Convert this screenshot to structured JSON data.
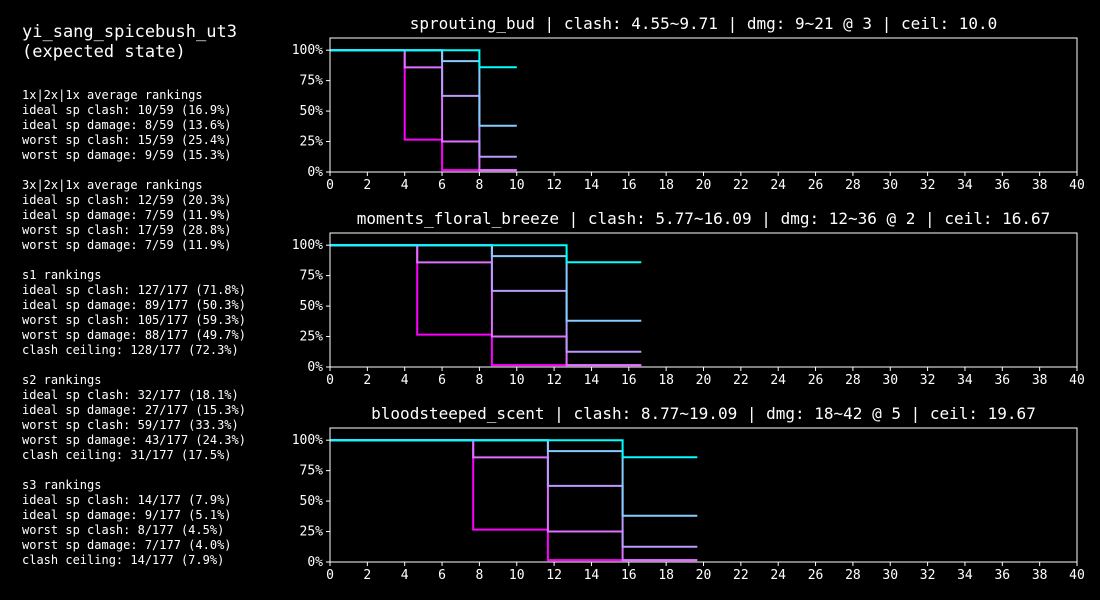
{
  "page": {
    "title_line1": "yi_sang_spicebush_ut3",
    "title_line2": "(expected state)"
  },
  "sections": [
    {
      "header": "1x|2x|1x average rankings",
      "lines": [
        "ideal sp clash: 10/59 (16.9%)",
        "ideal sp damage: 8/59 (13.6%)",
        "worst sp clash: 15/59 (25.4%)",
        "worst sp damage: 9/59 (15.3%)"
      ]
    },
    {
      "header": "3x|2x|1x average rankings",
      "lines": [
        "ideal sp clash: 12/59 (20.3%)",
        "ideal sp damage: 7/59 (11.9%)",
        "worst sp clash: 17/59 (28.8%)",
        "worst sp damage: 7/59 (11.9%)"
      ]
    },
    {
      "header": "s1 rankings",
      "lines": [
        "ideal sp clash: 127/177 (71.8%)",
        "ideal sp damage: 89/177 (50.3%)",
        "worst sp clash: 105/177 (59.3%)",
        "worst sp damage: 88/177 (49.7%)",
        "clash ceiling: 128/177 (72.3%)"
      ]
    },
    {
      "header": "s2 rankings",
      "lines": [
        "ideal sp clash: 32/177 (18.1%)",
        "ideal sp damage: 27/177 (15.3%)",
        "worst sp clash: 59/177 (33.3%)",
        "worst sp damage: 43/177 (24.3%)",
        "clash ceiling: 31/177 (17.5%)"
      ]
    },
    {
      "header": "s3 rankings",
      "lines": [
        "ideal sp clash: 14/177 (7.9%)",
        "ideal sp damage: 9/177 (5.1%)",
        "worst sp clash: 8/177 (4.5%)",
        "worst sp damage: 7/177 (4.0%)",
        "clash ceiling: 14/177 (7.9%)"
      ]
    }
  ],
  "colors": {
    "background": "#000000",
    "axis": "#ffffff",
    "text": "#ffffff",
    "series": [
      "#ff00ff",
      "#e070ff",
      "#bb99ff",
      "#88ccff",
      "#00ffff"
    ]
  },
  "chart_data": [
    {
      "type": "line",
      "title": "sprouting_bud | clash: 4.55~9.71 | dmg: 9~21 @ 3 | ceil: 10.0",
      "xlim": [
        0,
        40
      ],
      "ylim": [
        0,
        1.1
      ],
      "xticks": [
        0,
        2,
        4,
        6,
        8,
        10,
        12,
        14,
        16,
        18,
        20,
        22,
        24,
        26,
        28,
        30,
        32,
        34,
        36,
        38,
        40
      ],
      "xtick_labels": [
        "0",
        "2",
        "4",
        "6",
        "8",
        "10",
        "12",
        "14",
        "16",
        "18",
        "20",
        "22",
        "24",
        "26",
        "28",
        "30",
        "32",
        "34",
        "36",
        "38",
        "40"
      ],
      "yticks": [
        0,
        0.25,
        0.5,
        0.75,
        1.0
      ],
      "ytick_labels": [
        "0%",
        "25%",
        "50%",
        "75%",
        "100%"
      ],
      "grid": false,
      "series": [
        {
          "x": [
            0,
            4,
            4,
            6,
            6,
            8,
            8,
            10
          ],
          "y": [
            1,
            1,
            0.266,
            0.266,
            0.016,
            0.016,
            0.016,
            0.016
          ]
        },
        {
          "x": [
            0,
            4,
            4,
            6,
            6,
            8,
            8,
            10
          ],
          "y": [
            1,
            1,
            0.859,
            0.859,
            0.25,
            0.25,
            0.016,
            0.016
          ]
        },
        {
          "x": [
            0,
            6,
            6,
            8,
            8,
            10
          ],
          "y": [
            1,
            1,
            0.625,
            0.625,
            0.125,
            0.125
          ]
        },
        {
          "x": [
            0,
            6,
            6,
            8,
            8,
            10
          ],
          "y": [
            1,
            1,
            0.91,
            0.91,
            0.38,
            0.38
          ]
        },
        {
          "x": [
            0,
            8,
            8,
            10
          ],
          "y": [
            1,
            1,
            0.86,
            0.86
          ]
        }
      ]
    },
    {
      "type": "line",
      "title": "moments_floral_breeze | clash: 5.77~16.09 | dmg: 12~36 @ 2 | ceil: 16.67",
      "xlim": [
        0,
        40
      ],
      "ylim": [
        0,
        1.1
      ],
      "xticks": [
        0,
        2,
        4,
        6,
        8,
        10,
        12,
        14,
        16,
        18,
        20,
        22,
        24,
        26,
        28,
        30,
        32,
        34,
        36,
        38,
        40
      ],
      "xtick_labels": [
        "0",
        "2",
        "4",
        "6",
        "8",
        "10",
        "12",
        "14",
        "16",
        "18",
        "20",
        "22",
        "24",
        "26",
        "28",
        "30",
        "32",
        "34",
        "36",
        "38",
        "40"
      ],
      "yticks": [
        0,
        0.25,
        0.5,
        0.75,
        1.0
      ],
      "ytick_labels": [
        "0%",
        "25%",
        "50%",
        "75%",
        "100%"
      ],
      "grid": false,
      "series": [
        {
          "x": [
            0,
            4.67,
            4.67,
            8.67,
            8.67,
            12.67,
            12.67,
            16.67
          ],
          "y": [
            1,
            1,
            0.266,
            0.266,
            0.016,
            0.016,
            0.016,
            0.016
          ]
        },
        {
          "x": [
            0,
            4.67,
            4.67,
            8.67,
            8.67,
            12.67,
            12.67,
            16.67
          ],
          "y": [
            1,
            1,
            0.859,
            0.859,
            0.25,
            0.25,
            0.016,
            0.016
          ]
        },
        {
          "x": [
            0,
            8.67,
            8.67,
            12.67,
            12.67,
            16.67
          ],
          "y": [
            1,
            1,
            0.625,
            0.625,
            0.125,
            0.125
          ]
        },
        {
          "x": [
            0,
            8.67,
            8.67,
            12.67,
            12.67,
            16.67
          ],
          "y": [
            1,
            1,
            0.91,
            0.91,
            0.38,
            0.38
          ]
        },
        {
          "x": [
            0,
            12.67,
            12.67,
            16.67
          ],
          "y": [
            1,
            1,
            0.86,
            0.86
          ]
        }
      ]
    },
    {
      "type": "line",
      "title": "bloodsteeped_scent | clash: 8.77~19.09 | dmg: 18~42 @ 5 | ceil: 19.67",
      "xlim": [
        0,
        40
      ],
      "ylim": [
        0,
        1.1
      ],
      "xticks": [
        0,
        2,
        4,
        6,
        8,
        10,
        12,
        14,
        16,
        18,
        20,
        22,
        24,
        26,
        28,
        30,
        32,
        34,
        36,
        38,
        40
      ],
      "xtick_labels": [
        "0",
        "2",
        "4",
        "6",
        "8",
        "10",
        "12",
        "14",
        "16",
        "18",
        "20",
        "22",
        "24",
        "26",
        "28",
        "30",
        "32",
        "34",
        "36",
        "38",
        "40"
      ],
      "yticks": [
        0,
        0.25,
        0.5,
        0.75,
        1.0
      ],
      "ytick_labels": [
        "0%",
        "25%",
        "50%",
        "75%",
        "100%"
      ],
      "grid": false,
      "series": [
        {
          "x": [
            0,
            7.67,
            7.67,
            11.67,
            11.67,
            15.67,
            15.67,
            19.67
          ],
          "y": [
            1,
            1,
            0.266,
            0.266,
            0.016,
            0.016,
            0.016,
            0.016
          ]
        },
        {
          "x": [
            0,
            7.67,
            7.67,
            11.67,
            11.67,
            15.67,
            15.67,
            19.67
          ],
          "y": [
            1,
            1,
            0.859,
            0.859,
            0.25,
            0.25,
            0.016,
            0.016
          ]
        },
        {
          "x": [
            0,
            11.67,
            11.67,
            15.67,
            15.67,
            19.67
          ],
          "y": [
            1,
            1,
            0.625,
            0.625,
            0.125,
            0.125
          ]
        },
        {
          "x": [
            0,
            11.67,
            11.67,
            15.67,
            15.67,
            19.67
          ],
          "y": [
            1,
            1,
            0.91,
            0.91,
            0.38,
            0.38
          ]
        },
        {
          "x": [
            0,
            15.67,
            15.67,
            19.67
          ],
          "y": [
            1,
            1,
            0.86,
            0.86
          ]
        }
      ]
    }
  ]
}
